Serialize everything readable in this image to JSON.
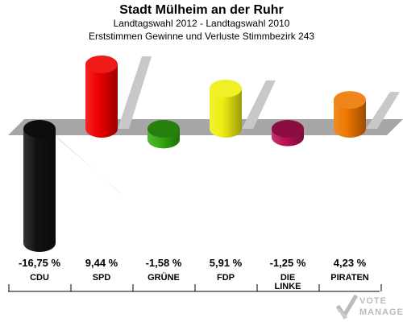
{
  "header": {
    "title": "Stadt Mülheim an der Ruhr",
    "subtitle1": "Landtagswahl 2012 - Landtagswahl 2010",
    "subtitle2": "Erststimmen Gewinne und Verluste Stimmbezirk 243"
  },
  "logo": {
    "line1": "VOTE",
    "line2": "MANAGER",
    "icon": "vote-check-icon"
  },
  "chart_data": {
    "type": "bar",
    "title": "Erststimmen Gewinne und Verluste Stimmbezirk 243",
    "categories": [
      "CDU",
      "SPD",
      "GRÜNE",
      "FDP",
      "DIE LINKE",
      "PIRATEN"
    ],
    "values": [
      -16.75,
      9.44,
      -1.58,
      5.91,
      -1.25,
      4.23
    ],
    "value_labels": [
      "-16,75 %",
      "9,44 %",
      "-1,58 %",
      "5,91 %",
      "-1,25 %",
      "4,23 %"
    ],
    "colors": [
      "#111111",
      "#ee0000",
      "#33aa11",
      "#eeee11",
      "#bb1155",
      "#ee7700"
    ],
    "unit": "%",
    "grid": false,
    "legend": "none"
  }
}
